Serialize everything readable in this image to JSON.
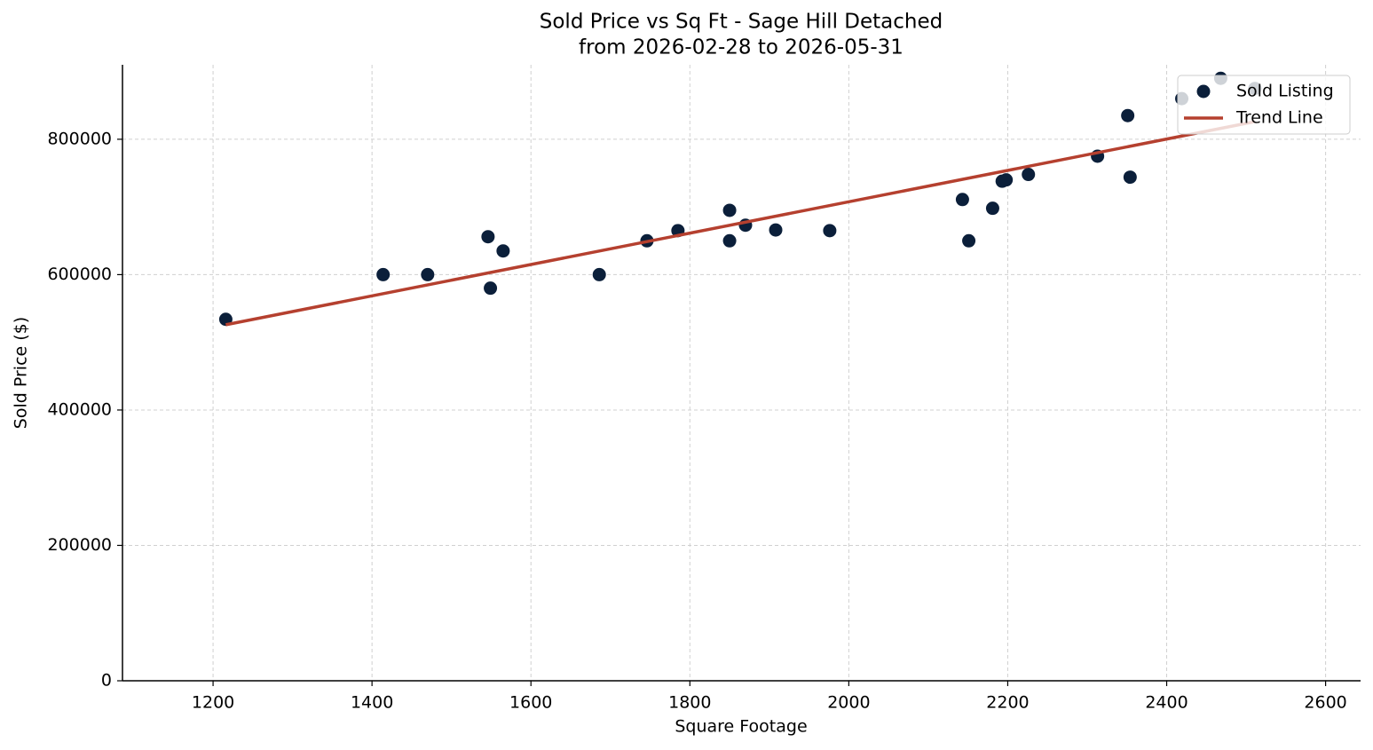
{
  "chart_data": {
    "type": "scatter",
    "title": "Sold Price vs Sq Ft - Sage Hill Detached",
    "subtitle": "from 2026-02-28 to 2026-05-31",
    "x_label": "Square Footage",
    "y_label": "Sold Price ($)",
    "xlim": [
      1086,
      2644
    ],
    "ylim": [
      0,
      910000
    ],
    "xticks": [
      1200,
      1400,
      1600,
      1800,
      2000,
      2200,
      2400,
      2600
    ],
    "yticks": [
      0,
      200000,
      400000,
      600000,
      800000
    ],
    "grid": true,
    "legend": "upper right",
    "series": [
      {
        "name": "Sold Listing",
        "type": "scatter",
        "color": "#0b1f3a",
        "x": [
          1216,
          1414,
          1470,
          1546,
          1549,
          1565,
          1686,
          1746,
          1785,
          1850,
          1850,
          1870,
          1908,
          1976,
          2143,
          2151,
          2181,
          2193,
          2198,
          2226,
          2313,
          2351,
          2354,
          2419,
          2468,
          2511
        ],
        "values": [
          534000,
          600000,
          600000,
          656000,
          580000,
          635000,
          600000,
          650000,
          665000,
          695000,
          650000,
          673000,
          666000,
          665000,
          711000,
          650000,
          698000,
          738000,
          740000,
          748000,
          775000,
          835000,
          744000,
          860000,
          890000,
          875000
        ]
      },
      {
        "name": "Trend Line",
        "type": "line",
        "color": "#b5402f",
        "x": [
          1216,
          2511
        ],
        "values": [
          526000,
          826000
        ]
      }
    ]
  }
}
